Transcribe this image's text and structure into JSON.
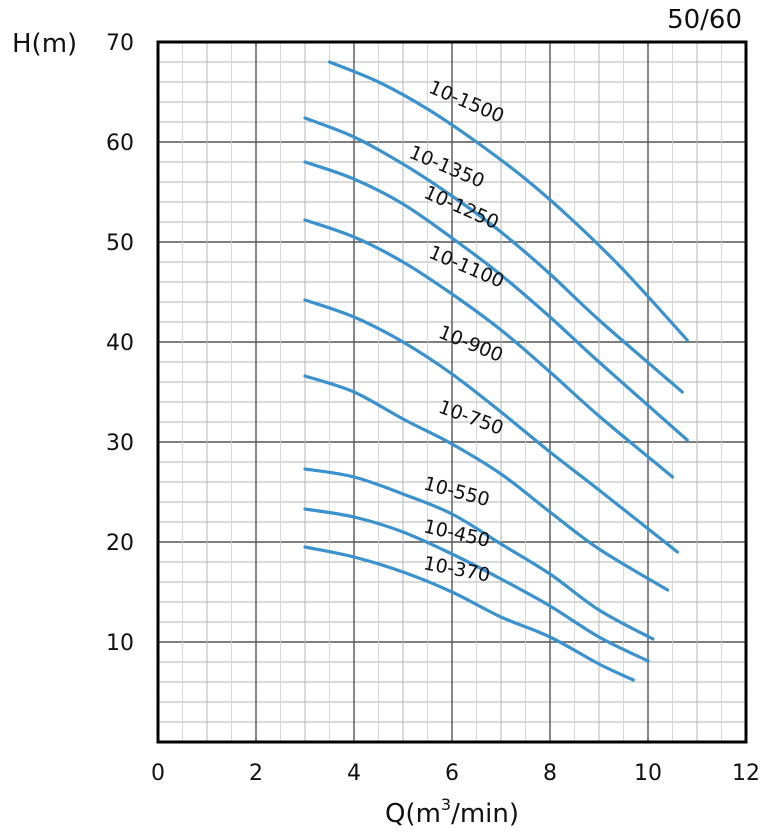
{
  "chart_data": {
    "type": "line",
    "corner_label": "50/60",
    "ylabel": "H(m)",
    "xlabel_prefix": "Q(m",
    "xlabel_sup": "3",
    "xlabel_suffix": "/min)",
    "xlim": [
      0,
      12
    ],
    "ylim": [
      0,
      70
    ],
    "x_ticks": [
      "0",
      "2",
      "4",
      "6",
      "8",
      "10",
      "12"
    ],
    "y_ticks": [
      "10",
      "20",
      "30",
      "40",
      "50",
      "60",
      "70"
    ],
    "grid": true,
    "line_color": "#3a92cf",
    "series": [
      {
        "name": "10-370",
        "points": [
          [
            3.0,
            19.5
          ],
          [
            4.0,
            18.5
          ],
          [
            5.0,
            17.0
          ],
          [
            6.0,
            15.0
          ],
          [
            7.0,
            12.5
          ],
          [
            8.0,
            10.5
          ],
          [
            9.0,
            7.8
          ],
          [
            9.7,
            6.2
          ]
        ]
      },
      {
        "name": "10-450",
        "points": [
          [
            3.0,
            23.3
          ],
          [
            4.0,
            22.5
          ],
          [
            5.0,
            21.0
          ],
          [
            6.0,
            18.8
          ],
          [
            7.0,
            16.3
          ],
          [
            8.0,
            13.6
          ],
          [
            9.0,
            10.5
          ],
          [
            10.0,
            8.1
          ]
        ]
      },
      {
        "name": "10-550",
        "points": [
          [
            3.0,
            27.3
          ],
          [
            4.0,
            26.5
          ],
          [
            5.0,
            24.8
          ],
          [
            6.0,
            22.8
          ],
          [
            7.0,
            19.8
          ],
          [
            8.0,
            16.8
          ],
          [
            9.0,
            13.2
          ],
          [
            10.1,
            10.3
          ]
        ]
      },
      {
        "name": "10-750",
        "points": [
          [
            3.0,
            36.6
          ],
          [
            4.0,
            35.0
          ],
          [
            5.0,
            32.3
          ],
          [
            6.0,
            29.8
          ],
          [
            7.0,
            26.8
          ],
          [
            8.0,
            23.0
          ],
          [
            9.0,
            19.3
          ],
          [
            10.4,
            15.2
          ]
        ]
      },
      {
        "name": "10-900",
        "points": [
          [
            3.0,
            44.2
          ],
          [
            4.0,
            42.5
          ],
          [
            5.0,
            40.0
          ],
          [
            6.0,
            36.8
          ],
          [
            7.0,
            33.0
          ],
          [
            8.0,
            29.0
          ],
          [
            9.0,
            25.2
          ],
          [
            10.6,
            19.0
          ]
        ]
      },
      {
        "name": "10-1100",
        "points": [
          [
            3.0,
            52.2
          ],
          [
            4.0,
            50.5
          ],
          [
            5.0,
            48.0
          ],
          [
            6.0,
            44.8
          ],
          [
            7.0,
            41.2
          ],
          [
            8.0,
            37.0
          ],
          [
            9.0,
            32.6
          ],
          [
            10.5,
            26.5
          ]
        ]
      },
      {
        "name": "10-1250",
        "points": [
          [
            3.0,
            58.0
          ],
          [
            4.0,
            56.3
          ],
          [
            5.0,
            53.8
          ],
          [
            6.0,
            50.4
          ],
          [
            7.0,
            46.7
          ],
          [
            8.0,
            42.5
          ],
          [
            9.0,
            38.0
          ],
          [
            10.8,
            30.2
          ]
        ]
      },
      {
        "name": "10-1350",
        "points": [
          [
            3.0,
            62.4
          ],
          [
            4.0,
            60.5
          ],
          [
            5.0,
            57.8
          ],
          [
            6.0,
            54.6
          ],
          [
            7.0,
            51.0
          ],
          [
            8.0,
            46.8
          ],
          [
            9.0,
            42.2
          ],
          [
            10.7,
            35.0
          ]
        ]
      },
      {
        "name": "10-1500",
        "points": [
          [
            3.5,
            68.0
          ],
          [
            4.5,
            66.0
          ],
          [
            5.5,
            63.3
          ],
          [
            6.5,
            60.0
          ],
          [
            7.5,
            56.3
          ],
          [
            8.5,
            52.0
          ],
          [
            9.5,
            47.2
          ],
          [
            10.8,
            40.2
          ]
        ]
      }
    ],
    "labels": [
      {
        "series": "10-370",
        "text": "10-370",
        "x": 5.4,
        "y": 17.3,
        "angle": 11
      },
      {
        "series": "10-450",
        "text": "10-450",
        "x": 5.4,
        "y": 21.0,
        "angle": 13
      },
      {
        "series": "10-550",
        "text": "10-550",
        "x": 5.4,
        "y": 25.3,
        "angle": 15
      },
      {
        "series": "10-750",
        "text": "10-750",
        "x": 5.7,
        "y": 33.0,
        "angle": 20
      },
      {
        "series": "10-900",
        "text": "10-900",
        "x": 5.7,
        "y": 40.5,
        "angle": 22
      },
      {
        "series": "10-1100",
        "text": "10-1100",
        "x": 5.5,
        "y": 48.5,
        "angle": 23
      },
      {
        "series": "10-1250",
        "text": "10-1250",
        "x": 5.4,
        "y": 54.5,
        "angle": 24
      },
      {
        "series": "10-1350",
        "text": "10-1350",
        "x": 5.1,
        "y": 58.5,
        "angle": 23
      },
      {
        "series": "10-1500",
        "text": "10-1500",
        "x": 5.5,
        "y": 65.0,
        "angle": 23
      }
    ]
  }
}
